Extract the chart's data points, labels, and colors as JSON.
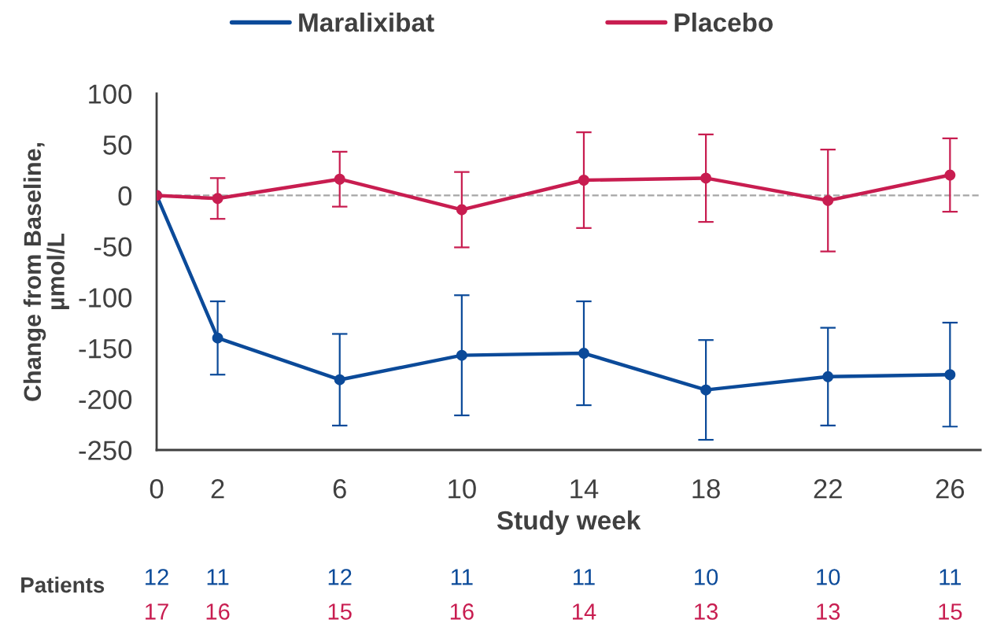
{
  "chart_data": {
    "type": "line",
    "xlabel": "Study week",
    "ylabel": "Change from Baseline,\nµmol/L",
    "x": [
      0,
      2,
      6,
      10,
      14,
      18,
      22,
      26
    ],
    "xlim": [
      0,
      27
    ],
    "xticks": [
      0,
      2,
      6,
      10,
      14,
      18,
      22,
      26
    ],
    "ylim": [
      -250,
      100
    ],
    "yticks": [
      -250,
      -200,
      -150,
      -100,
      -50,
      0,
      50,
      100
    ],
    "series": [
      {
        "name": "Maralixibat",
        "color": "#0b4a99",
        "values": [
          0,
          -140,
          -181,
          -157,
          -155,
          -191,
          -178,
          -176
        ],
        "errors": [
          null,
          36,
          45,
          59,
          51,
          49,
          48,
          51
        ]
      },
      {
        "name": "Placebo",
        "color": "#c81d50",
        "values": [
          0,
          -3,
          16,
          -14,
          15,
          17,
          -5,
          20
        ],
        "errors": [
          null,
          20,
          27,
          37,
          47,
          43,
          50,
          36
        ]
      }
    ],
    "ref_lines": [
      {
        "axis": "y",
        "value": 0,
        "color": "#a6a6a6",
        "line_style": "dashed"
      }
    ],
    "legend": "top",
    "marker": "circle",
    "line_style": "solid",
    "grid": false,
    "annotations": [
      "Patients",
      "12",
      "11",
      "12",
      "11",
      "11",
      "10",
      "10",
      "11",
      "17",
      "16",
      "15",
      "16",
      "14",
      "13",
      "13",
      "15"
    ]
  }
}
